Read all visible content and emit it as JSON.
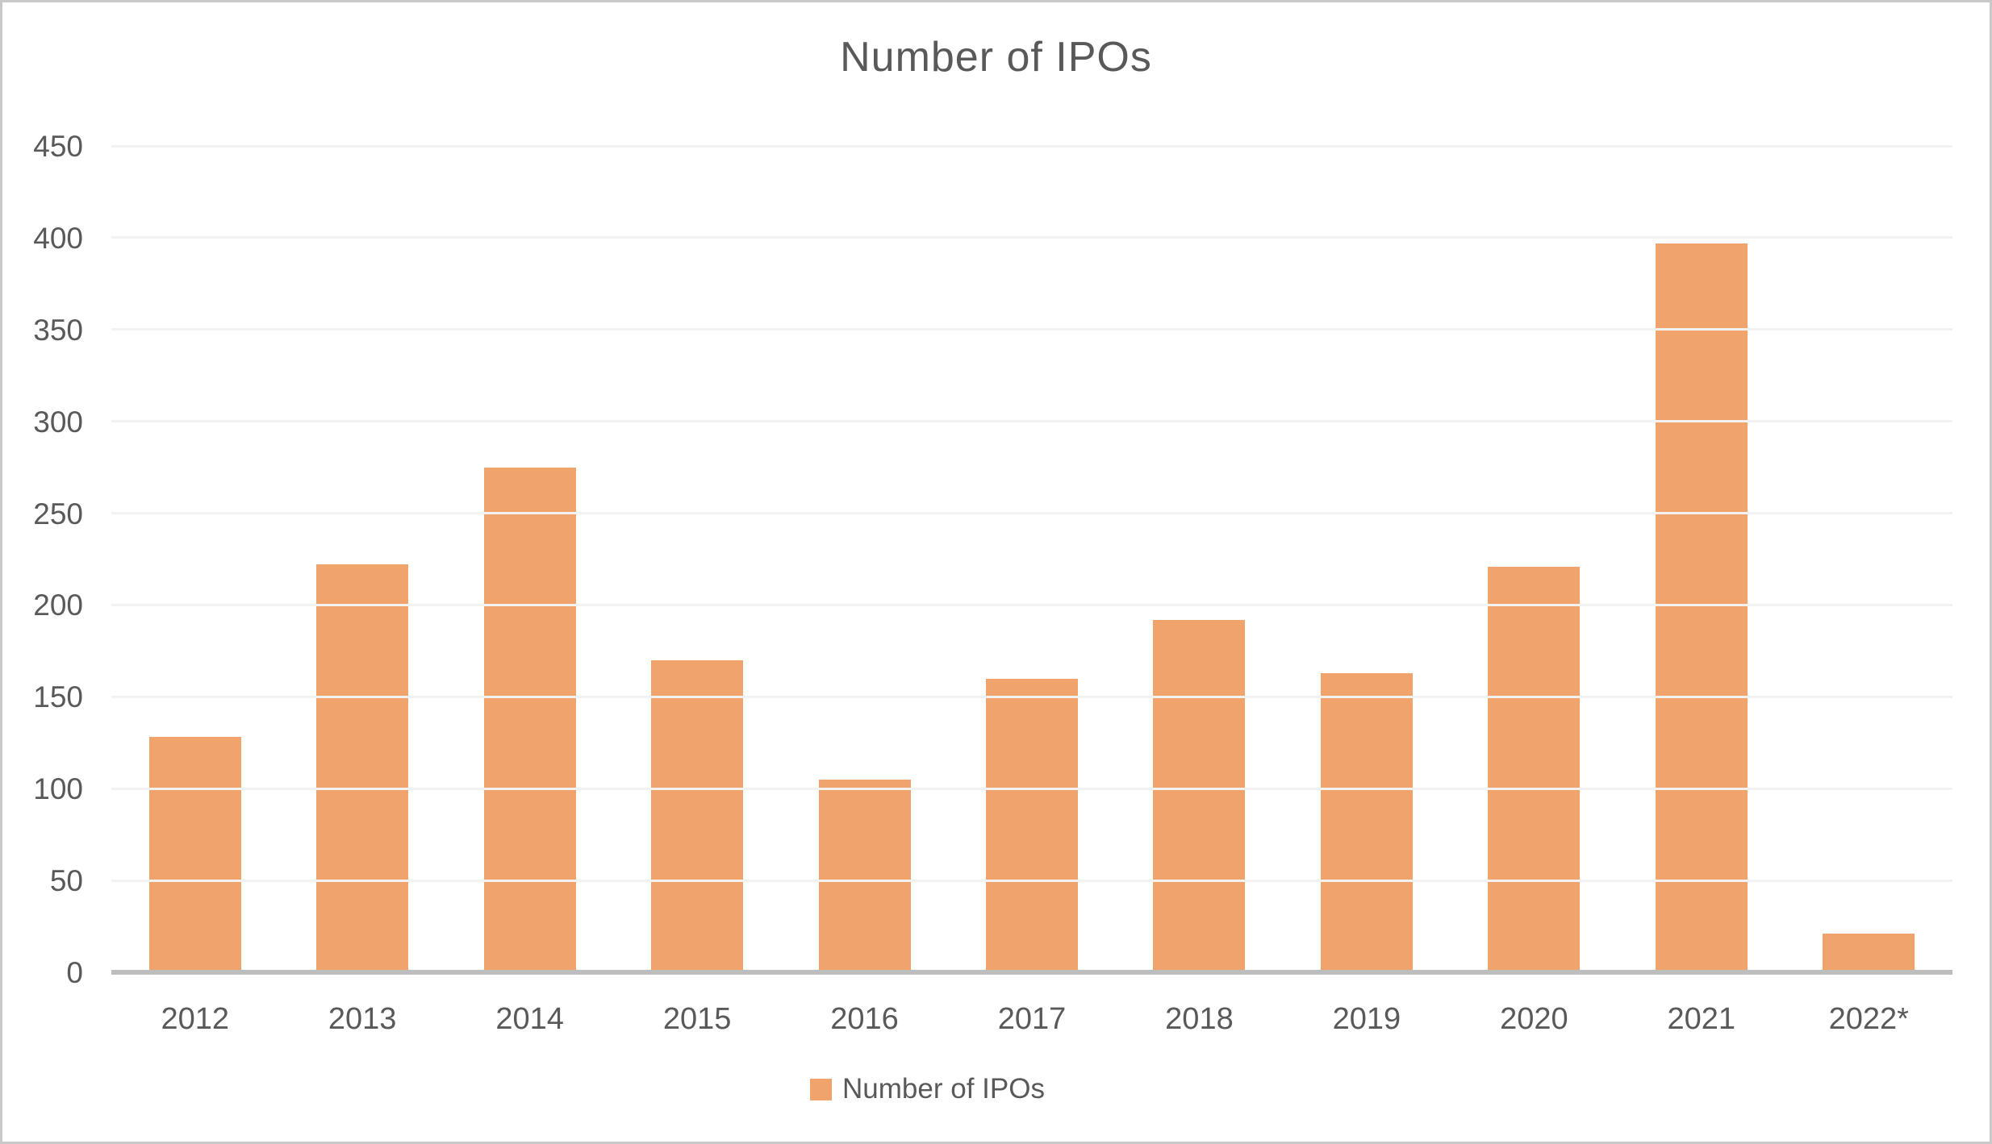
{
  "chart_data": {
    "type": "bar",
    "title": "Number of IPOs",
    "legend": "Number of IPOs",
    "categories": [
      "2012",
      "2013",
      "2014",
      "2015",
      "2016",
      "2017",
      "2018",
      "2019",
      "2020",
      "2021",
      "2022*"
    ],
    "values": [
      128,
      222,
      275,
      170,
      105,
      160,
      192,
      163,
      221,
      397,
      21
    ],
    "yticks": [
      0,
      50,
      100,
      150,
      200,
      250,
      300,
      350,
      400,
      450
    ],
    "ylim": [
      0,
      450
    ],
    "xlabel": "",
    "ylabel": "",
    "grid": "horizontal",
    "legend_position": "bottom-center",
    "bar_color": "#f0a46c",
    "gridline_color": "#f2f2f2",
    "axis_line_color": "#bdbdbd",
    "text_color": "#595959"
  }
}
